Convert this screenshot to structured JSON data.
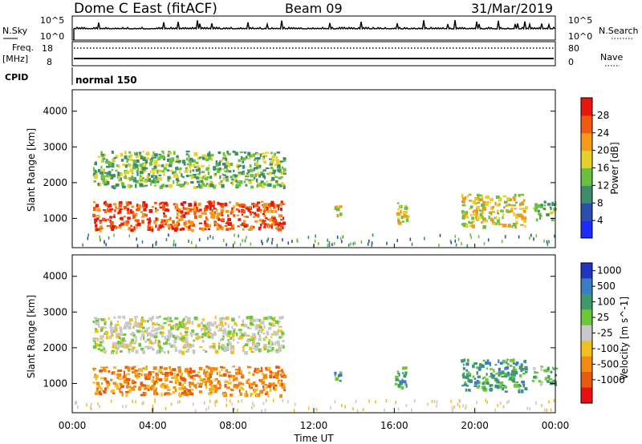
{
  "header": {
    "station": "Dome C East (fitACF)",
    "beam": "Beam 09",
    "date": "31/Mar/2019"
  },
  "status_panels": {
    "nsky_label": "N.Sky",
    "nsearch_label": "N.Search",
    "nsky_tick_top": "10^5",
    "nsky_tick_bottom": "10^0",
    "nsearch_tick_top": "10^5",
    "nsearch_tick_bottom": "10^0",
    "freq_label": "Freq.",
    "freq_unit": "[MHz]",
    "freq_tick_top": "18",
    "freq_tick_bottom": "8",
    "nave_label": "Nave",
    "nave_tick_top": "80",
    "nave_tick_bottom": "0",
    "cpid_label": "CPID",
    "cpid_value": "normal 150"
  },
  "time_axis": {
    "label": "Time UT",
    "ticks": [
      "00:00",
      "04:00",
      "08:00",
      "12:00",
      "16:00",
      "20:00",
      "00:00"
    ]
  },
  "chart_data": [
    {
      "type": "heatmap",
      "name": "power",
      "ylabel": "Slant Range [km]",
      "yticks": [
        "1000",
        "2000",
        "3000",
        "4000"
      ],
      "ylim": [
        180,
        4600
      ],
      "xlim_hours": [
        0,
        24
      ],
      "colorbar": {
        "label": "Power [dB]",
        "ticks": [
          "4",
          "8",
          "12",
          "16",
          "20",
          "24",
          "28"
        ],
        "colors": [
          "#1d2bff",
          "#2a4fb0",
          "#3d8c6a",
          "#6cc040",
          "#e6d02a",
          "#f39a18",
          "#ef5a10",
          "#e8160c"
        ]
      },
      "echo_regions": [
        {
          "hours": [
            1.0,
            10.5
          ],
          "range_km": [
            700,
            1500
          ],
          "level_db": 24
        },
        {
          "hours": [
            1.0,
            10.5
          ],
          "range_km": [
            1900,
            2900
          ],
          "level_db": 12
        },
        {
          "hours": [
            13.0,
            13.3
          ],
          "range_km": [
            1100,
            1500
          ],
          "level_db": 16
        },
        {
          "hours": [
            16.0,
            16.6
          ],
          "range_km": [
            900,
            1500
          ],
          "level_db": 16
        },
        {
          "hours": [
            19.3,
            22.5
          ],
          "range_km": [
            800,
            1700
          ],
          "level_db": 16
        },
        {
          "hours": [
            22.8,
            24.0
          ],
          "range_km": [
            1000,
            1500
          ],
          "level_db": 12
        }
      ]
    },
    {
      "type": "heatmap",
      "name": "velocity",
      "ylabel": "Slant Range [km]",
      "yticks": [
        "1000",
        "2000",
        "3000",
        "4000"
      ],
      "ylim": [
        180,
        4600
      ],
      "xlim_hours": [
        0,
        24
      ],
      "colorbar": {
        "label": "Velocity [m s^-1]",
        "ticks": [
          "1000",
          "500",
          "100",
          "25",
          "-25",
          "-100",
          "-500",
          "-1000"
        ],
        "colors": [
          "#2036c0",
          "#3a7dc4",
          "#3f9a6a",
          "#6cc83a",
          "#c8c8c8",
          "#f0c020",
          "#f08a10",
          "#e85a10",
          "#e81010"
        ]
      },
      "echo_regions": [
        {
          "hours": [
            1.0,
            10.5
          ],
          "range_km": [
            700,
            1500
          ],
          "velocity_ms": -300
        },
        {
          "hours": [
            1.0,
            10.5
          ],
          "range_km": [
            1900,
            2900
          ],
          "velocity_ms": 0
        },
        {
          "hours": [
            13.0,
            13.3
          ],
          "range_km": [
            1100,
            1500
          ],
          "velocity_ms": 300
        },
        {
          "hours": [
            16.0,
            16.6
          ],
          "range_km": [
            900,
            1500
          ],
          "velocity_ms": 300
        },
        {
          "hours": [
            19.3,
            22.5
          ],
          "range_km": [
            800,
            1700
          ],
          "velocity_ms": 200
        },
        {
          "hours": [
            22.8,
            24.0
          ],
          "range_km": [
            1000,
            1500
          ],
          "velocity_ms": 100
        }
      ]
    }
  ]
}
